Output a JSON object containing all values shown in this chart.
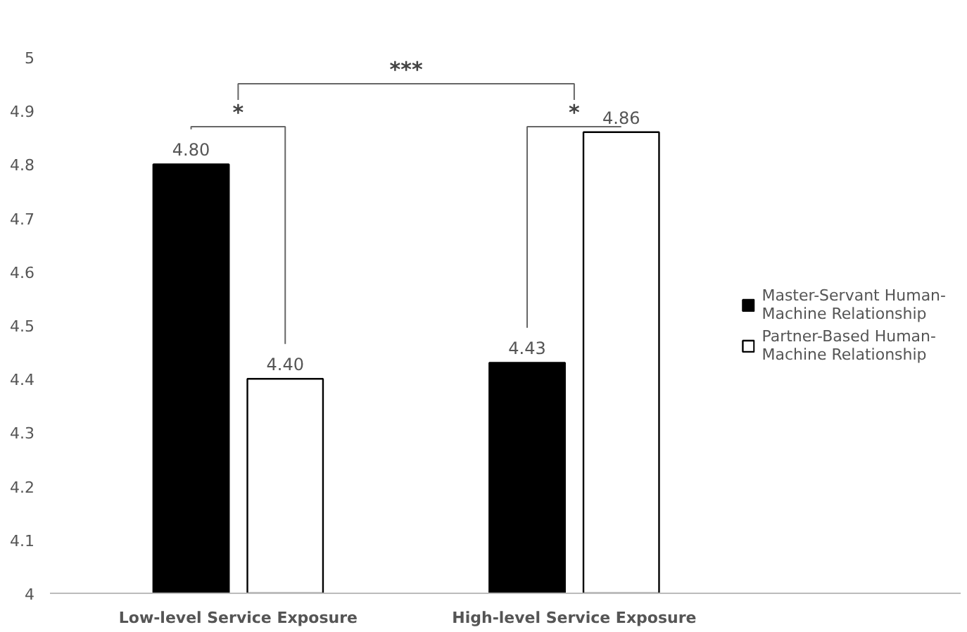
{
  "chart_data": {
    "type": "bar",
    "categories": [
      "Low-level Service Exposure",
      "High-level Service Exposure"
    ],
    "series": [
      {
        "name": "Master-Servant Human-Machine Relationship",
        "color": "#000000",
        "values": [
          4.8,
          4.43
        ],
        "value_labels": [
          "4.80",
          "4.43"
        ]
      },
      {
        "name": "Partner-Based Human-Machine Relationship",
        "color": "#ffffff",
        "values": [
          4.4,
          4.86
        ],
        "value_labels": [
          "4.40",
          "4.86"
        ]
      }
    ],
    "ylim": [
      4,
      5
    ],
    "yticks": [
      4,
      4.1,
      4.2,
      4.3,
      4.4,
      4.5,
      4.6,
      4.7,
      4.8,
      4.9,
      5
    ],
    "annotations": [
      "*",
      "*",
      "***"
    ],
    "grid": false,
    "legend": "right"
  }
}
